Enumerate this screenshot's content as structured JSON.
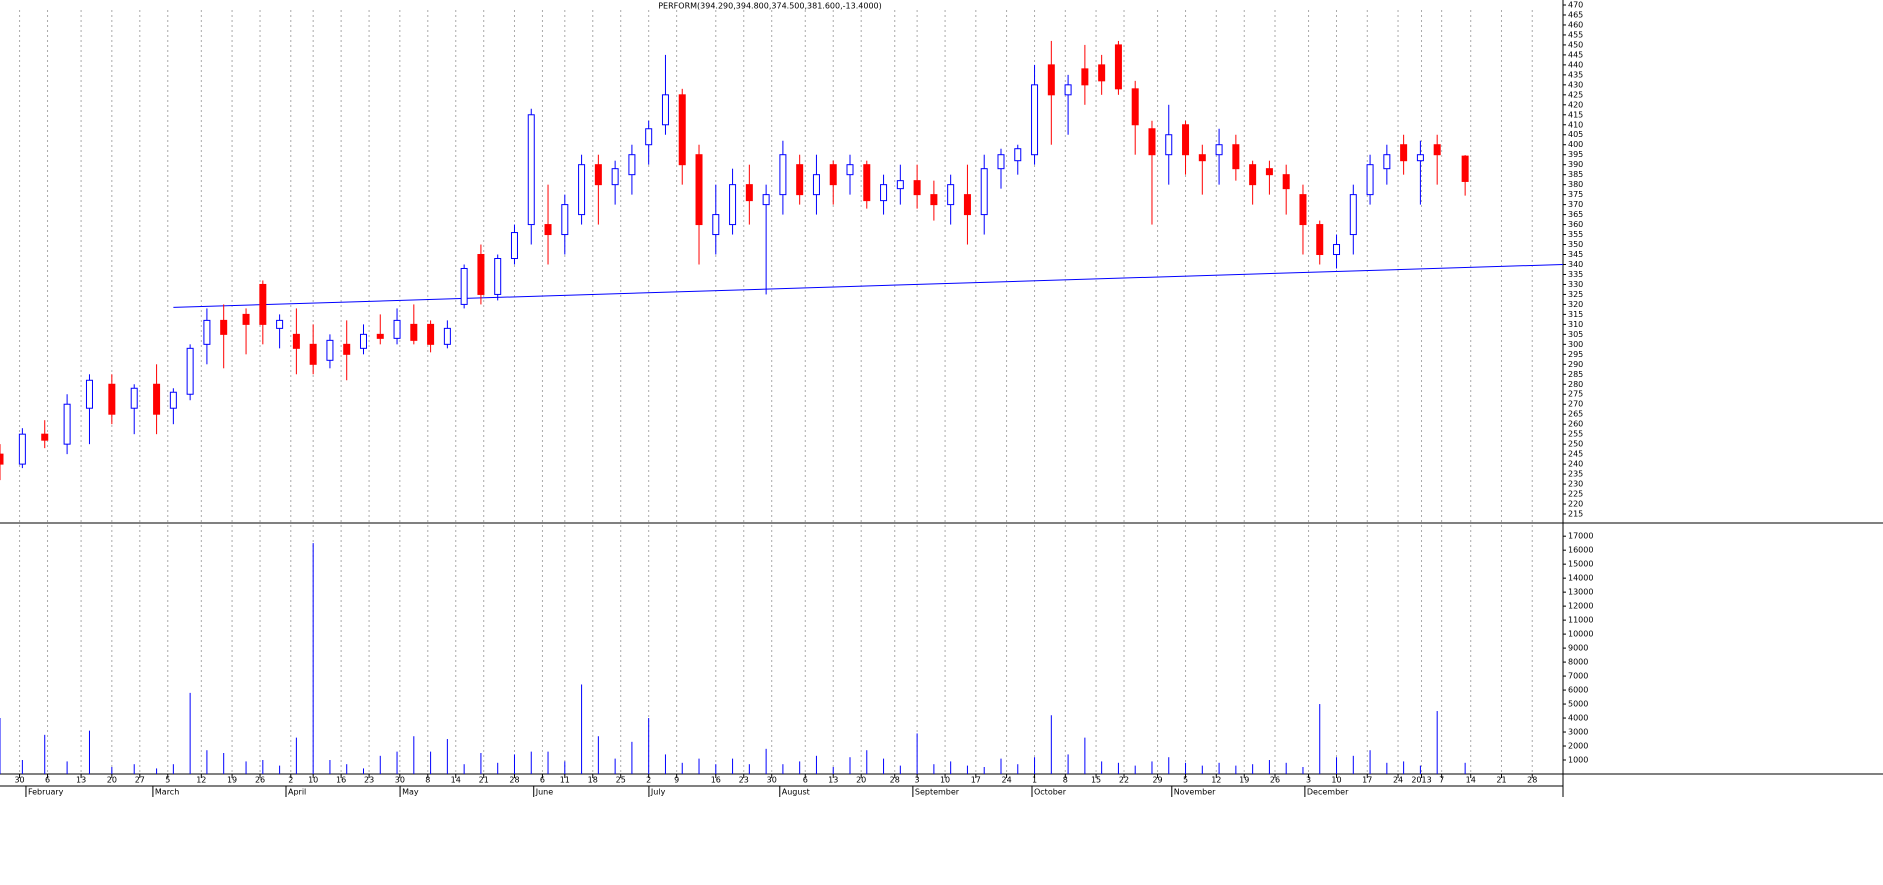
{
  "chart_data": {
    "type": "candlestick",
    "title": "PERFORM(394.290,394.800,374.500,381.600,-13.4000)",
    "up_color": "#0000ff",
    "down_color": "#ff0000",
    "volume_color": "#0000ff",
    "trendline_color": "#0000ff",
    "x": [
      0,
      4,
      8,
      12,
      16,
      20,
      24,
      28,
      31,
      34,
      37,
      40,
      44,
      47,
      50,
      53,
      56,
      59,
      62,
      65,
      68,
      71,
      74,
      77,
      80,
      83,
      86,
      89,
      92,
      95,
      98,
      101,
      104,
      107,
      110,
      113,
      116,
      119,
      122,
      125,
      128,
      131,
      134,
      137,
      140,
      143,
      146,
      149,
      152,
      155,
      158,
      161,
      164,
      167,
      170,
      173,
      176,
      179,
      182,
      185,
      188,
      191,
      194,
      197,
      200,
      203,
      206,
      209,
      212,
      215,
      218,
      221,
      224,
      227,
      230,
      233,
      236,
      239,
      242,
      245,
      248,
      251,
      254,
      257,
      262
    ],
    "open": [
      245,
      240,
      255,
      250,
      268,
      280,
      268,
      280,
      268,
      275,
      300,
      312,
      315,
      330,
      308,
      305,
      300,
      292,
      300,
      298,
      305,
      303,
      310,
      310,
      300,
      320,
      345,
      325,
      343,
      360,
      360,
      355,
      365,
      390,
      380,
      385,
      400,
      410,
      425,
      395,
      355,
      360,
      380,
      370,
      375,
      390,
      375,
      390,
      385,
      390,
      372,
      378,
      382,
      375,
      370,
      375,
      365,
      388,
      392,
      395,
      440,
      425,
      438,
      440,
      450,
      428,
      408,
      395,
      410,
      395,
      395,
      400,
      390,
      388,
      385,
      375,
      360,
      345,
      355,
      375,
      388,
      400,
      392,
      400,
      394.29
    ],
    "high": [
      250,
      258,
      262,
      275,
      285,
      285,
      280,
      290,
      278,
      300,
      318,
      320,
      318,
      332,
      315,
      318,
      310,
      305,
      312,
      310,
      315,
      318,
      320,
      312,
      312,
      340,
      350,
      345,
      360,
      418,
      380,
      375,
      395,
      395,
      392,
      400,
      412,
      445,
      428,
      400,
      380,
      388,
      390,
      380,
      402,
      395,
      395,
      392,
      395,
      392,
      385,
      390,
      390,
      382,
      385,
      390,
      395,
      398,
      400,
      440,
      452,
      435,
      450,
      445,
      452,
      432,
      412,
      420,
      412,
      400,
      408,
      405,
      392,
      392,
      390,
      380,
      362,
      355,
      380,
      395,
      400,
      405,
      402,
      405,
      394.8
    ],
    "low": [
      232,
      238,
      248,
      245,
      250,
      260,
      255,
      255,
      260,
      272,
      290,
      288,
      295,
      300,
      298,
      285,
      285,
      288,
      282,
      295,
      300,
      300,
      300,
      296,
      298,
      318,
      320,
      322,
      340,
      350,
      340,
      345,
      360,
      360,
      370,
      375,
      390,
      405,
      380,
      340,
      345,
      355,
      360,
      325,
      365,
      370,
      365,
      370,
      375,
      368,
      365,
      370,
      368,
      362,
      360,
      350,
      355,
      378,
      385,
      390,
      400,
      405,
      420,
      425,
      425,
      395,
      360,
      380,
      385,
      375,
      380,
      382,
      370,
      375,
      365,
      345,
      340,
      338,
      345,
      370,
      380,
      385,
      370,
      380,
      374.5
    ],
    "close": [
      240,
      255,
      252,
      270,
      282,
      265,
      278,
      265,
      276,
      298,
      312,
      305,
      310,
      310,
      312,
      298,
      290,
      302,
      295,
      305,
      303,
      312,
      302,
      300,
      308,
      338,
      325,
      343,
      356,
      415,
      355,
      370,
      390,
      380,
      388,
      395,
      408,
      425,
      390,
      360,
      365,
      380,
      372,
      375,
      395,
      375,
      385,
      380,
      390,
      372,
      380,
      382,
      375,
      370,
      380,
      365,
      388,
      395,
      398,
      430,
      425,
      430,
      430,
      432,
      428,
      410,
      395,
      405,
      395,
      392,
      400,
      388,
      380,
      385,
      378,
      360,
      345,
      350,
      375,
      390,
      395,
      392,
      395,
      395,
      381.6
    ],
    "volume": [
      4000,
      1000,
      2800,
      900,
      3100,
      500,
      700,
      400,
      700,
      5800,
      1700,
      1500,
      900,
      1000,
      600,
      2600,
      16500,
      1000,
      700,
      400,
      1300,
      1600,
      2700,
      1600,
      2500,
      700,
      1500,
      800,
      1400,
      1600,
      1600,
      900,
      6400,
      2700,
      1100,
      2300,
      4000,
      1400,
      800,
      1100,
      700,
      1100,
      700,
      1800,
      700,
      900,
      1300,
      500,
      1200,
      1700,
      1100,
      600,
      2900,
      700,
      900,
      600,
      500,
      1100,
      700,
      1200,
      4200,
      1400,
      2600,
      900,
      800,
      600,
      900,
      1200,
      800,
      600,
      800,
      600,
      700,
      1000,
      800,
      500,
      5000,
      1200,
      1300,
      1700,
      800,
      900,
      600,
      4500,
      800
    ],
    "trendline": {
      "x": [
        31,
        279.5
      ],
      "y": [
        318.5,
        340
      ]
    },
    "xlim": [
      0,
      279.5
    ],
    "xticks": [
      {
        "value": 3.5,
        "label": "30"
      },
      {
        "value": 8.5,
        "label": "6"
      },
      {
        "value": 14.5,
        "label": "13"
      },
      {
        "value": 20,
        "label": "20"
      },
      {
        "value": 25,
        "label": "27"
      },
      {
        "value": 30,
        "label": "5"
      },
      {
        "value": 36,
        "label": "12"
      },
      {
        "value": 41.5,
        "label": "19"
      },
      {
        "value": 46.5,
        "label": "26"
      },
      {
        "value": 52,
        "label": "2"
      },
      {
        "value": 56,
        "label": "10"
      },
      {
        "value": 61,
        "label": "16"
      },
      {
        "value": 66,
        "label": "23"
      },
      {
        "value": 71.5,
        "label": "30"
      },
      {
        "value": 76.5,
        "label": "8"
      },
      {
        "value": 81.5,
        "label": "14"
      },
      {
        "value": 86.5,
        "label": "21"
      },
      {
        "value": 92,
        "label": "28"
      },
      {
        "value": 97,
        "label": "6"
      },
      {
        "value": 101,
        "label": "11"
      },
      {
        "value": 106,
        "label": "18"
      },
      {
        "value": 111,
        "label": "25"
      },
      {
        "value": 116,
        "label": "2"
      },
      {
        "value": 121,
        "label": "9"
      },
      {
        "value": 128,
        "label": "16"
      },
      {
        "value": 133,
        "label": "23"
      },
      {
        "value": 138,
        "label": "30"
      },
      {
        "value": 144,
        "label": "6"
      },
      {
        "value": 149,
        "label": "13"
      },
      {
        "value": 154,
        "label": "20"
      },
      {
        "value": 160,
        "label": "28"
      },
      {
        "value": 164,
        "label": "3"
      },
      {
        "value": 169,
        "label": "10"
      },
      {
        "value": 174.5,
        "label": "17"
      },
      {
        "value": 180,
        "label": "24"
      },
      {
        "value": 185,
        "label": "1"
      },
      {
        "value": 190.5,
        "label": "8"
      },
      {
        "value": 196,
        "label": "15"
      },
      {
        "value": 201,
        "label": "22"
      },
      {
        "value": 207,
        "label": "29"
      },
      {
        "value": 212,
        "label": "5"
      },
      {
        "value": 217.5,
        "label": "12"
      },
      {
        "value": 222.5,
        "label": "19"
      },
      {
        "value": 228,
        "label": "26"
      },
      {
        "value": 234,
        "label": "3"
      },
      {
        "value": 239,
        "label": "10"
      },
      {
        "value": 244.5,
        "label": "17"
      },
      {
        "value": 250,
        "label": "24"
      },
      {
        "value": 254.2,
        "label": "2013"
      },
      {
        "value": 257.8,
        "label": "7"
      },
      {
        "value": 263,
        "label": "14"
      },
      {
        "value": 268.5,
        "label": "21"
      },
      {
        "value": 274,
        "label": "28"
      }
    ],
    "months": [
      {
        "value": 5,
        "label": "February"
      },
      {
        "value": 27.7,
        "label": "March"
      },
      {
        "value": 51.5,
        "label": "April"
      },
      {
        "value": 71.9,
        "label": "May"
      },
      {
        "value": 95.8,
        "label": "June"
      },
      {
        "value": 116.4,
        "label": "July"
      },
      {
        "value": 139.8,
        "label": "August"
      },
      {
        "value": 163.6,
        "label": "September"
      },
      {
        "value": 184.9,
        "label": "October"
      },
      {
        "value": 209.9,
        "label": "November"
      },
      {
        "value": 233.7,
        "label": "December"
      }
    ],
    "ylim": [
      211,
      472.5
    ],
    "yticks": [
      215,
      220,
      225,
      230,
      235,
      240,
      245,
      250,
      255,
      260,
      265,
      270,
      275,
      280,
      285,
      290,
      295,
      300,
      305,
      310,
      315,
      320,
      325,
      330,
      335,
      340,
      345,
      350,
      355,
      360,
      365,
      370,
      375,
      380,
      385,
      390,
      395,
      400,
      405,
      410,
      415,
      420,
      425,
      430,
      435,
      440,
      445,
      450,
      455,
      460,
      465,
      470
    ],
    "volume_ylim": [
      0,
      17800
    ],
    "volume_yticks": [
      1000,
      2000,
      3000,
      4000,
      5000,
      6000,
      7000,
      8000,
      9000,
      10000,
      11000,
      12000,
      13000,
      14000,
      15000,
      16000,
      17000
    ],
    "grid": true
  }
}
